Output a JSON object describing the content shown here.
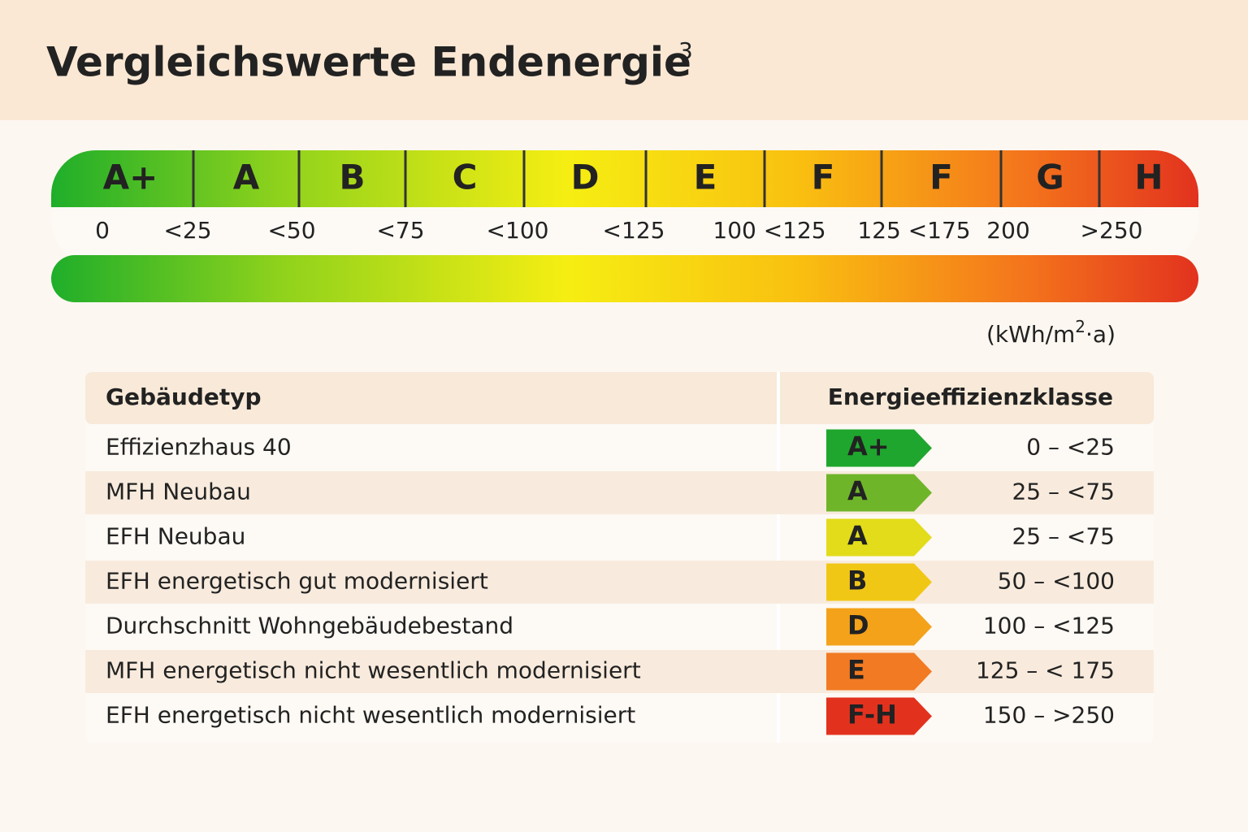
{
  "header": {
    "title": "Vergleichswerte Endenergie",
    "footnote": "3"
  },
  "scale": {
    "classes": [
      "A+",
      "A",
      "B",
      "C",
      "D",
      "E",
      "F",
      "F",
      "G",
      "H"
    ],
    "labels": [
      "0",
      "<25",
      "<50",
      "<75",
      "<100",
      "<125",
      "100 <125",
      "125 <175",
      "200",
      ">250"
    ],
    "unit": {
      "prefix": "(kWh/m",
      "superscript": "2",
      "suffix": "·a)"
    }
  },
  "table": {
    "header": [
      "Gebäudetyp",
      "Energieeffizienzklasse"
    ],
    "rows": [
      [
        "Effizienzhaus 40",
        "A+",
        "0 – <25"
      ],
      [
        "MFH Neubau",
        "A",
        "25 –  <75"
      ],
      [
        "EFH Neubau",
        "A",
        "25 –  <75"
      ],
      [
        "EFH energetisch gut modernisiert",
        "B",
        "50 – <100"
      ],
      [
        "Durchschnitt Wohngebäudebestand",
        "D",
        "100 – <125"
      ],
      [
        "MFH energetisch nicht wesentlich modernisiert",
        "E",
        "125 –  < 175"
      ],
      [
        "EFH energetisch nicht wesentlich modernisiert",
        "F-H",
        "150 –  >250"
      ]
    ]
  }
}
